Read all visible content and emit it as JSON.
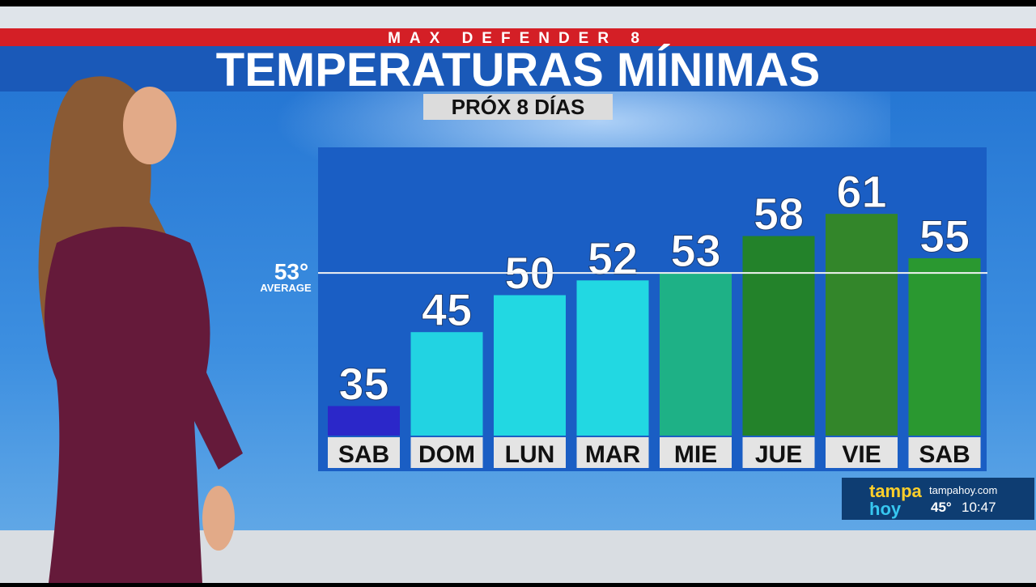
{
  "header": "MAX DEFENDER 8",
  "chart_data": {
    "type": "bar",
    "title": "TEMPERATURAS MÍNIMAS",
    "subtitle": "PRÓX 8 DÍAS",
    "categories": [
      "SAB",
      "DOM",
      "LUN",
      "MAR",
      "MIE",
      "JUE",
      "VIE",
      "SAB"
    ],
    "values": [
      35,
      45,
      50,
      52,
      53,
      58,
      61,
      55
    ],
    "colors": [
      "#2b27c9",
      "#22d3e2",
      "#22d8e2",
      "#22d8e2",
      "#1eb186",
      "#23822a",
      "#33862a",
      "#2a9830"
    ],
    "ylim": [
      31,
      70
    ],
    "reference_line": {
      "value": 53,
      "label": "53°",
      "name": "AVERAGE"
    }
  },
  "bug": {
    "brand_top": "tampa",
    "brand_bottom": "hoy",
    "site": "tampahoy.com",
    "temperature": "45°",
    "time": "10:47"
  }
}
